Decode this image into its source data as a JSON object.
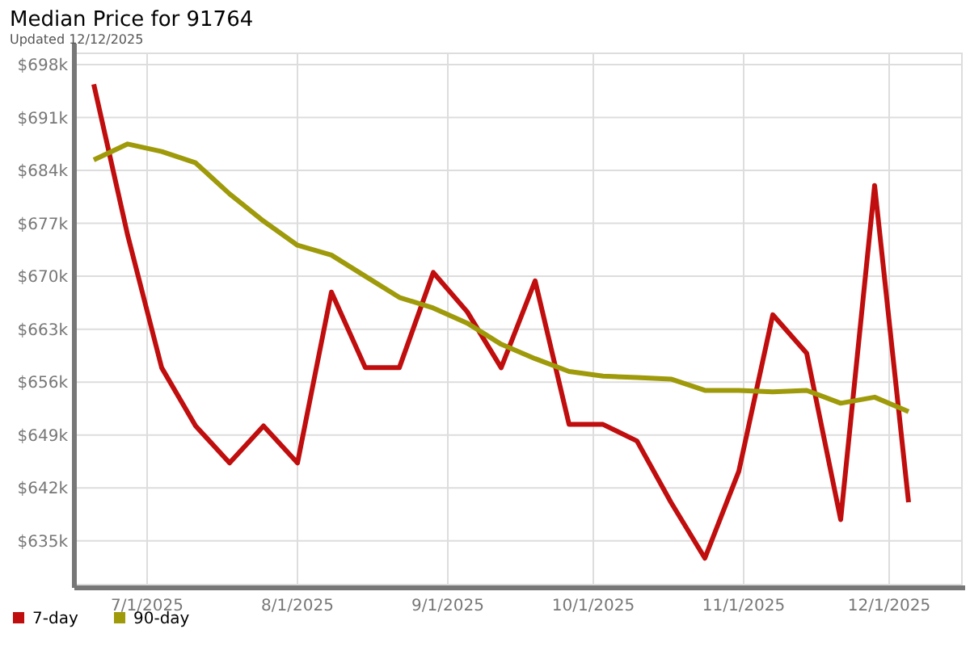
{
  "chart_data": {
    "type": "line",
    "title": "Median Price for 91764",
    "subtitle": "Updated 12/12/2025",
    "x": [
      "2025-06-20",
      "2025-06-27",
      "2025-07-04",
      "2025-07-11",
      "2025-07-18",
      "2025-07-25",
      "2025-08-01",
      "2025-08-08",
      "2025-08-15",
      "2025-08-22",
      "2025-08-29",
      "2025-09-05",
      "2025-09-12",
      "2025-09-19",
      "2025-09-26",
      "2025-10-03",
      "2025-10-10",
      "2025-10-17",
      "2025-10-24",
      "2025-10-31",
      "2025-11-07",
      "2025-11-14",
      "2025-11-21",
      "2025-11-28",
      "2025-12-05"
    ],
    "series": [
      {
        "name": "7-day",
        "color": "#c00d0d",
        "values": [
          695.4,
          675.4,
          657.9,
          650.2,
          645.3,
          650.2,
          645.3,
          667.9,
          657.9,
          657.9,
          670.5,
          665.3,
          657.9,
          669.4,
          650.4,
          650.4,
          648.2,
          640.1,
          632.7,
          644.2,
          664.9,
          659.8,
          637.8,
          682,
          640.1
        ]
      },
      {
        "name": "90-day",
        "color": "#9e9a0a",
        "values": [
          685.4,
          687.5,
          686.5,
          685,
          680.9,
          677.3,
          674.1,
          672.8,
          670,
          667.2,
          665.8,
          663.8,
          661,
          659.1,
          657.4,
          656.8,
          656.6,
          656.4,
          654.9,
          654.9,
          654.7,
          654.9,
          653.2,
          654,
          652.1
        ]
      }
    ],
    "xlim": [
      "2025-06-16",
      "2025-12-16"
    ],
    "xticks": [
      {
        "value": "2025-07-01",
        "label": "7/1/2025"
      },
      {
        "value": "2025-08-01",
        "label": "8/1/2025"
      },
      {
        "value": "2025-09-01",
        "label": "9/1/2025"
      },
      {
        "value": "2025-10-01",
        "label": "10/1/2025"
      },
      {
        "value": "2025-11-01",
        "label": "11/1/2025"
      },
      {
        "value": "2025-12-01",
        "label": "12/1/2025"
      }
    ],
    "ylim": [
      629.2,
      699.5
    ],
    "yticks": [
      {
        "value": 635,
        "label": "$635k"
      },
      {
        "value": 642,
        "label": "$642k"
      },
      {
        "value": 649,
        "label": "$649k"
      },
      {
        "value": 656,
        "label": "$656k"
      },
      {
        "value": 663,
        "label": "$663k"
      },
      {
        "value": 670,
        "label": "$670k"
      },
      {
        "value": 677,
        "label": "$677k"
      },
      {
        "value": 684,
        "label": "$684k"
      },
      {
        "value": 691,
        "label": "$691k"
      },
      {
        "value": 698,
        "label": "$698k"
      }
    ],
    "grid": true,
    "legend": "bottom left",
    "line_style": "solid",
    "marker": "none"
  }
}
